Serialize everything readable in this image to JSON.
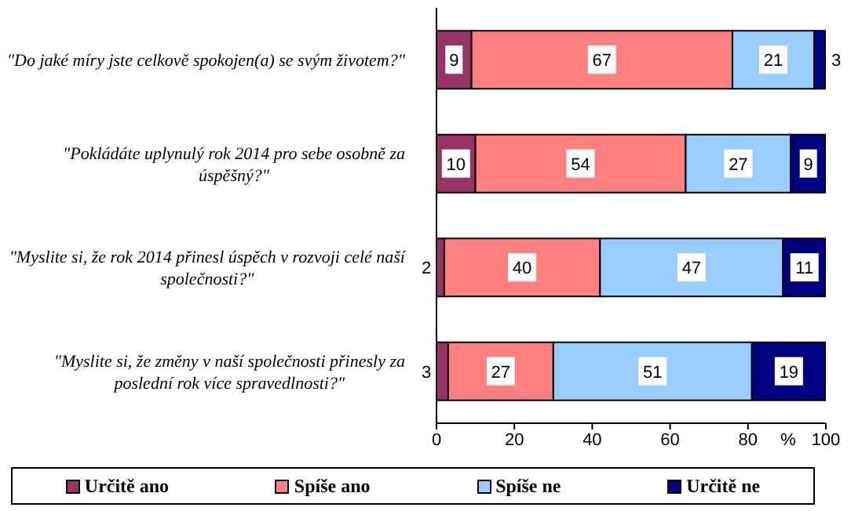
{
  "chart_data": {
    "type": "bar",
    "orientation": "horizontal",
    "stacked": true,
    "categories": [
      "\"Do jaké míry jste celkově spokojen(a) se svým životem?\"",
      "\"Pokládáte uplynulý rok 2014 pro sebe osobně za úspěšný?\"",
      "\"Myslite si, že rok 2014 přinesl úspěch v rozvoji celé naší společnosti?\"",
      "\"Myslite si, že změny v naší společnosti přinesly za poslední rok více spravedlnosti?\""
    ],
    "series": [
      {
        "name": "Určitě ano",
        "color": "#993366",
        "values": [
          9,
          10,
          2,
          3
        ]
      },
      {
        "name": "Spíše ano",
        "color": "#ff8080",
        "values": [
          67,
          54,
          40,
          27
        ]
      },
      {
        "name": "Spíše ne",
        "color": "#99ccff",
        "values": [
          21,
          27,
          47,
          51
        ]
      },
      {
        "name": "Určitě ne",
        "color": "#000080",
        "values": [
          3,
          9,
          11,
          19
        ]
      }
    ],
    "xlabel": "%",
    "xlim": [
      0,
      100
    ],
    "xticks": [
      0,
      20,
      40,
      60,
      80,
      100
    ],
    "data_labels": true,
    "legend": "bottom",
    "grid": false
  }
}
